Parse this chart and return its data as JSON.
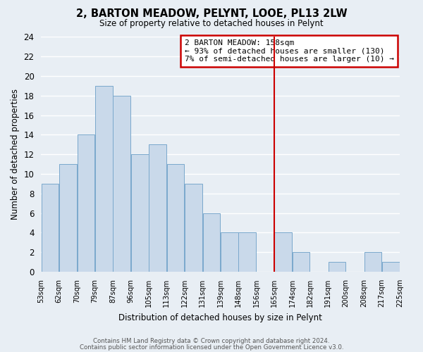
{
  "title": "2, BARTON MEADOW, PELYNT, LOOE, PL13 2LW",
  "subtitle": "Size of property relative to detached houses in Pelynt",
  "xlabel": "Distribution of detached houses by size in Pelynt",
  "ylabel": "Number of detached properties",
  "bin_labels": [
    "53sqm",
    "62sqm",
    "70sqm",
    "79sqm",
    "87sqm",
    "96sqm",
    "105sqm",
    "113sqm",
    "122sqm",
    "131sqm",
    "139sqm",
    "148sqm",
    "156sqm",
    "165sqm",
    "174sqm",
    "182sqm",
    "191sqm",
    "200sqm",
    "208sqm",
    "217sqm",
    "225sqm"
  ],
  "bar_values": [
    9,
    11,
    14,
    19,
    18,
    12,
    13,
    11,
    9,
    6,
    4,
    4,
    0,
    4,
    2,
    0,
    1,
    0,
    2,
    1
  ],
  "bar_color": "#c9d9ea",
  "bar_edge_color": "#7aa8cc",
  "vline_color": "#cc0000",
  "ylim": [
    0,
    24
  ],
  "yticks": [
    0,
    2,
    4,
    6,
    8,
    10,
    12,
    14,
    16,
    18,
    20,
    22,
    24
  ],
  "annotation_title": "2 BARTON MEADOW: 158sqm",
  "annotation_line1": "← 93% of detached houses are smaller (130)",
  "annotation_line2": "7% of semi-detached houses are larger (10) →",
  "annotation_box_facecolor": "#ffffff",
  "annotation_box_edgecolor": "#cc0000",
  "footer1": "Contains HM Land Registry data © Crown copyright and database right 2024.",
  "footer2": "Contains public sector information licensed under the Open Government Licence v3.0.",
  "fig_facecolor": "#e8eef4",
  "ax_facecolor": "#e8eef4",
  "grid_color": "#ffffff",
  "vline_bar_index": 12
}
